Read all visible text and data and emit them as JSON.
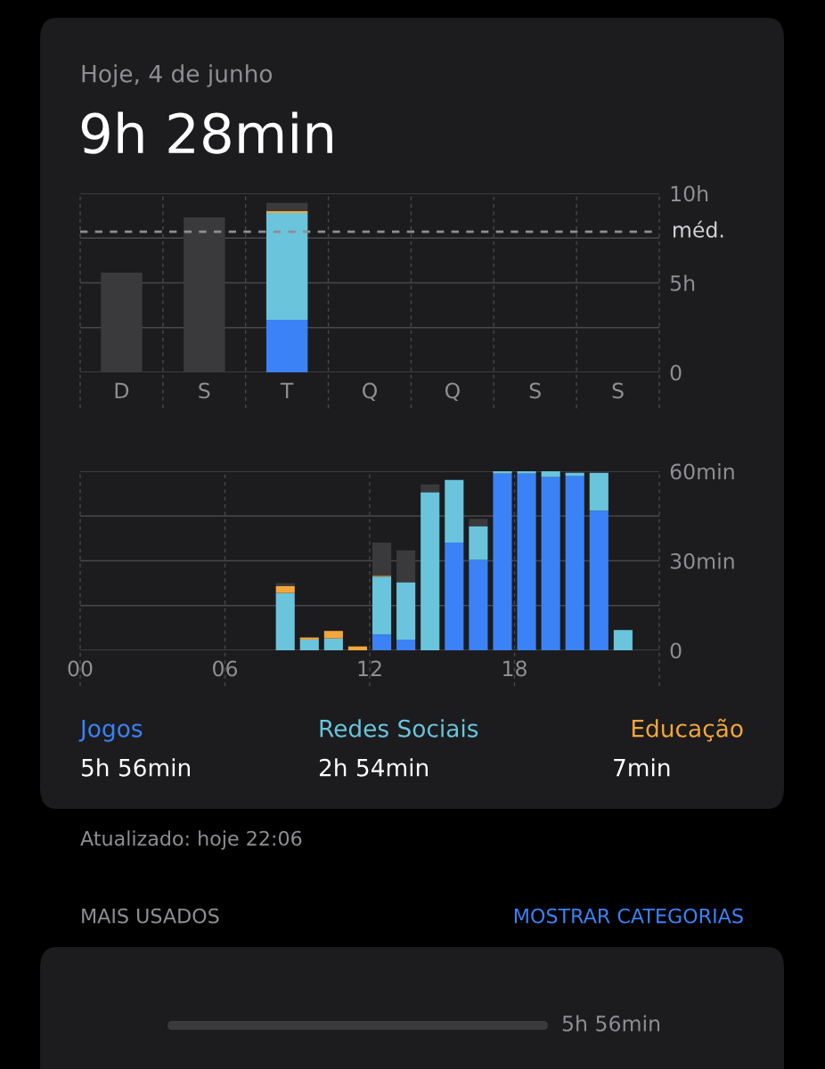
{
  "chart_data": [
    {
      "type": "bar",
      "title": "Hoje, 4 de junho",
      "subtitle": "9h 28min",
      "categories": [
        "D",
        "S",
        "T",
        "Q",
        "Q",
        "S",
        "S"
      ],
      "stacked": true,
      "series": [
        {
          "color": "#3b82f7",
          "values": [
            null,
            null,
            2.93,
            null,
            null,
            null,
            null
          ]
        },
        {
          "color": "#6ac4dc",
          "values": [
            null,
            null,
            5.97,
            null,
            null,
            null,
            null
          ]
        },
        {
          "color": "#f3a63b",
          "values": [
            null,
            null,
            0.1,
            null,
            null,
            null,
            null
          ]
        },
        {
          "color": "#3a3a3c",
          "values": [
            5.57,
            8.66,
            0.47,
            null,
            null,
            null,
            null
          ]
        }
      ],
      "ylim": [
        0,
        10
      ],
      "yticks": [
        0,
        {
          "value": 2.5,
          "label": null
        },
        {
          "value": 5,
          "label": "5h"
        },
        {
          "value": 7.5,
          "label": null
        },
        {
          "value": 10,
          "label": "10h"
        }
      ],
      "grid": true,
      "ref_lines": [
        {
          "axis": "y",
          "value": 7.86,
          "label": "méd.",
          "color": "#8e8e93",
          "line_style": "dashed"
        }
      ]
    },
    {
      "type": "bar",
      "stacked": true,
      "x": [
        8.5,
        9.5,
        10.5,
        11.5,
        12.5,
        13.5,
        14.5,
        15.5,
        16.5,
        17.5,
        18.5,
        19.5,
        20.5,
        21.5,
        22.5
      ],
      "series": [
        {
          "name": "Jogos",
          "color": "#3b82f7",
          "values": [
            null,
            null,
            null,
            null,
            5.3,
            3.6,
            null,
            36.1,
            30.3,
            59.2,
            59.2,
            58.1,
            58.4,
            46.8,
            null
          ]
        },
        {
          "name": "Redes Sociais",
          "color": "#6ac4dc",
          "values": [
            19.2,
            3.6,
            4.0,
            null,
            19.4,
            19.2,
            53.0,
            21.0,
            11.3,
            0.8,
            0.8,
            1.9,
            1.1,
            12.7,
            6.8
          ]
        },
        {
          "name": "Educação",
          "color": "#f3a63b",
          "values": [
            2.3,
            0.7,
            2.5,
            1.3,
            0.3,
            null,
            null,
            null,
            null,
            null,
            null,
            null,
            null,
            null,
            null
          ]
        },
        {
          "color": "#3a3a3c",
          "values": [
            1.0,
            null,
            null,
            null,
            11.1,
            10.7,
            2.6,
            null,
            2.5,
            null,
            null,
            null,
            null,
            null,
            null
          ]
        }
      ],
      "xlim": [
        0,
        24
      ],
      "xticks": [
        {
          "value": 0,
          "label": "00"
        },
        {
          "value": 6,
          "label": "06"
        },
        {
          "value": 12,
          "label": "12"
        },
        {
          "value": 18,
          "label": "18"
        },
        {
          "value": 24,
          "label": null
        }
      ],
      "ylim": [
        0,
        60
      ],
      "yticks": [
        0,
        {
          "value": 15,
          "label": null
        },
        {
          "value": 30,
          "label": "30min"
        },
        {
          "value": 45,
          "label": null
        },
        {
          "value": 60,
          "label": "60min"
        }
      ],
      "grid": true,
      "legend": "bottom",
      "annotations": [
        "5h 56min",
        "2h 54min",
        "7min",
        "Atualizado: hoje 22:06",
        "MAIS USADOS",
        "MOSTRAR CATEGORIAS",
        "5h 56min"
      ]
    }
  ]
}
